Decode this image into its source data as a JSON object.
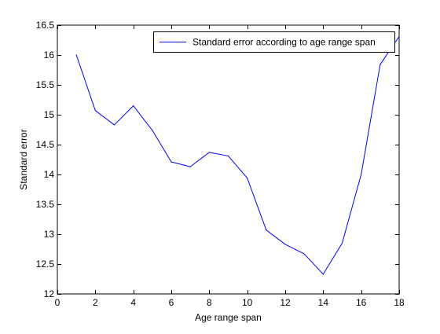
{
  "chart_data": {
    "type": "line",
    "title": "",
    "xlabel": "Age range span",
    "ylabel": "Standard error",
    "xlim": [
      0,
      18
    ],
    "ylim": [
      12,
      16.5
    ],
    "xticks": [
      0,
      2,
      4,
      6,
      8,
      10,
      12,
      14,
      16,
      18
    ],
    "yticks": [
      12,
      12.5,
      13,
      13.5,
      14,
      14.5,
      15,
      15.5,
      16,
      16.5
    ],
    "xtick_labels": [
      "0",
      "2",
      "4",
      "6",
      "8",
      "10",
      "12",
      "14",
      "16",
      "18"
    ],
    "ytick_labels": [
      "12",
      "12.5",
      "13",
      "13.5",
      "14",
      "14.5",
      "15",
      "15.5",
      "16",
      "16.5"
    ],
    "grid": false,
    "legend_position": "top-right",
    "series": [
      {
        "name": "Standard error according to age range span",
        "color": "#0000ff",
        "x": [
          1,
          2,
          3,
          4,
          5,
          6,
          7,
          8,
          9,
          10,
          11,
          12,
          13,
          14,
          15,
          16,
          17,
          18
        ],
        "y": [
          16.0,
          15.07,
          14.83,
          15.15,
          14.74,
          14.21,
          14.13,
          14.37,
          14.31,
          13.94,
          13.07,
          12.83,
          12.67,
          12.33,
          12.85,
          14.0,
          15.84,
          16.31
        ]
      }
    ]
  }
}
